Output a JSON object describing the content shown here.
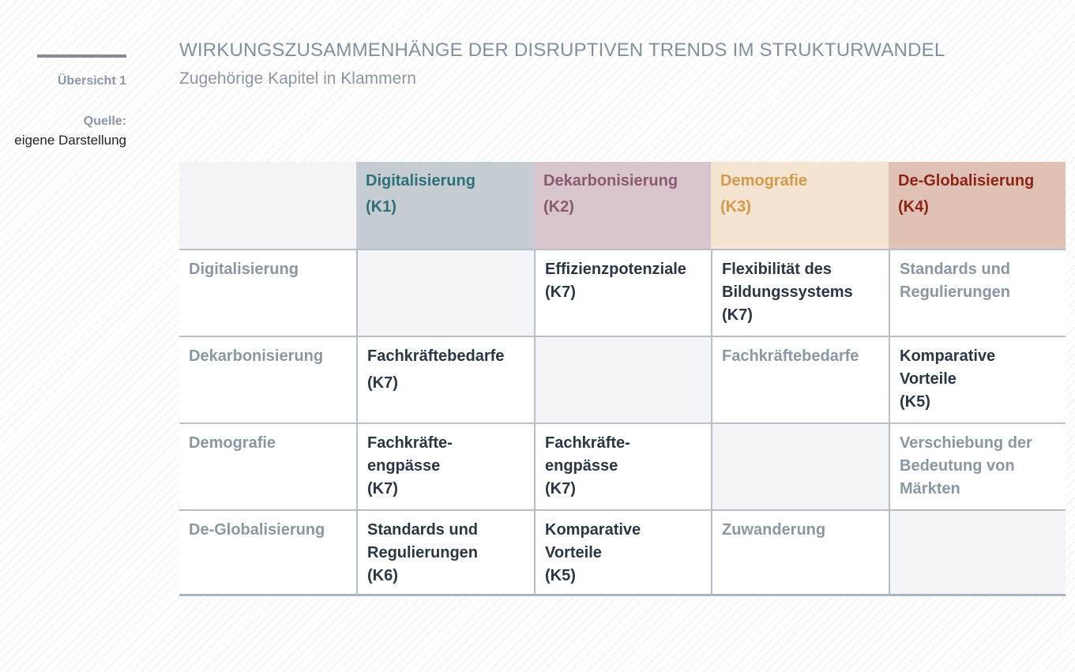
{
  "sidebar": {
    "overview_label": "Übersicht 1",
    "source_label": "Quelle:",
    "source_value": "eigene Darstellung"
  },
  "header": {
    "title": "WIRKUNGSZUSAMMENHÄNGE DER DISRUPTIVEN TRENDS IM STRUKTURWANDEL",
    "subtitle": "Zugehörige Kapitel in Klammern"
  },
  "matrix": {
    "columns": [
      {
        "label": "Digitalisierung",
        "code": "(K1)",
        "color": "#2f6f7a",
        "bg": "#c5cdd3"
      },
      {
        "label": "Dekarbonisierung",
        "code": "(K2)",
        "color": "#8a5a71",
        "bg": "#d8c5cd"
      },
      {
        "label": "Demografie",
        "code": "(K3)",
        "color": "#d39a4e",
        "bg": "#f5e4cf"
      },
      {
        "label": "De-Globalisierung",
        "code": "(K4)",
        "color": "#8e2419",
        "bg": "#e0c2b5"
      }
    ],
    "rows": [
      {
        "label": "Digitalisierung",
        "cells": [
          {
            "lines": []
          },
          {
            "lines": [
              "Effizienzpotenziale",
              "(K7)"
            ]
          },
          {
            "lines": [
              "Flexibilität des",
              "Bildungssystems",
              "(K7)"
            ]
          },
          {
            "lines": [
              "Standards und",
              "Regulierungen"
            ]
          }
        ]
      },
      {
        "label": "Dekarbonisierung",
        "cells": [
          {
            "lines": [
              "Fachkräftebedarfe",
              "(K7)"
            ]
          },
          {
            "lines": []
          },
          {
            "lines": [
              "Fachkräftebedarfe"
            ]
          },
          {
            "lines": [
              "Komparative",
              "Vorteile",
              "(K5)"
            ]
          }
        ]
      },
      {
        "label": "Demografie",
        "cells": [
          {
            "lines": [
              "Fachkräfte-",
              "engpässe",
              "(K7)"
            ]
          },
          {
            "lines": [
              "Fachkräfte-",
              "engpässe",
              "(K7)"
            ]
          },
          {
            "lines": []
          },
          {
            "lines": [
              "Verschiebung der",
              "Bedeutung von",
              "Märkten"
            ]
          }
        ]
      },
      {
        "label": "De-Globalisierung",
        "cells": [
          {
            "lines": [
              "Standards und",
              "Regulierungen",
              "(K6)"
            ]
          },
          {
            "lines": [
              "Komparative",
              "Vorteile",
              "(K5)"
            ]
          },
          {
            "lines": [
              "Zuwanderung"
            ]
          },
          {
            "lines": []
          }
        ]
      }
    ]
  }
}
